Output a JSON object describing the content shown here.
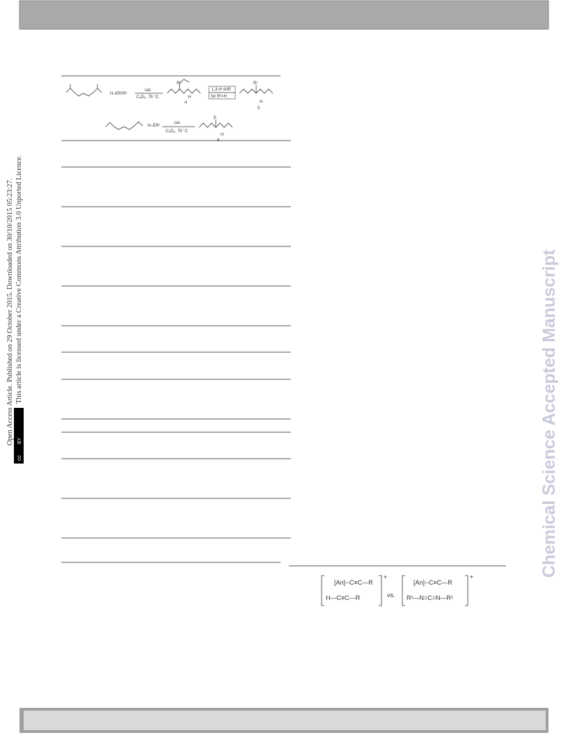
{
  "side_notice": {
    "line1": "Open Access Article. Published on 29 October 2015. Downloaded on 30/10/2015 05:23:27.",
    "line2": "This article is licensed under a Creative Commons Attribution 3.0 Unported Licence.",
    "badge_cc": "cc",
    "badge_by": "BY"
  },
  "watermark": "Chemical Science Accepted Manuscript",
  "scheme": {
    "reagent_1": "H–ER¹R²",
    "catalyst_1": "cat.",
    "solvent_1": "C₆D₆, 75 °C",
    "shift": "1,3-H shift",
    "shift_condition": "for R²=H",
    "compound_4": "4",
    "compound_5": "5",
    "reagent_2": "H–ER¹",
    "catalyst_2": "cat.",
    "solvent_2": "C₆D₆, 75 °C",
    "compound_6": "6"
  },
  "comparison": {
    "left_top": "[An]--C≡C—R",
    "left_bottom": "H—C≡C—R",
    "versus": "vs.",
    "right_top": "[An]--C≡C—R",
    "right_bottom": "R¹—N=C=N—R¹",
    "charge_left": "+",
    "charge_right": "+"
  }
}
